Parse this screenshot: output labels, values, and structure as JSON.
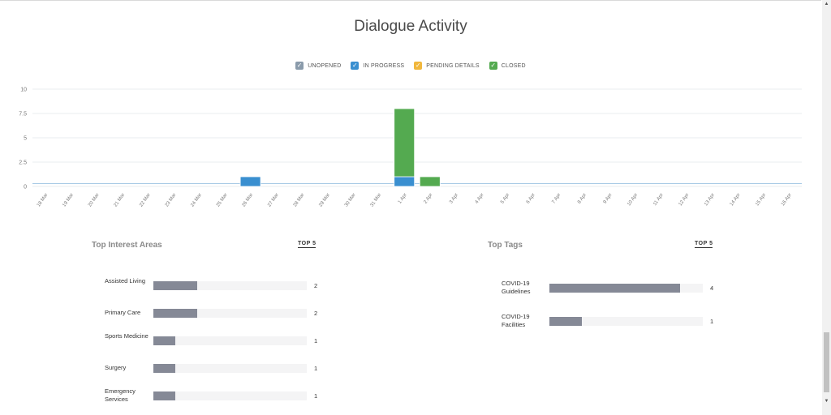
{
  "title": "Dialogue Activity",
  "legend": [
    {
      "label": "UNOPENED",
      "color": "#8a9bab"
    },
    {
      "label": "IN PROGRESS",
      "color": "#3a8fd0"
    },
    {
      "label": "PENDING DETAILS",
      "color": "#f1b73c"
    },
    {
      "label": "CLOSED",
      "color": "#54aa50"
    }
  ],
  "chart_data": {
    "type": "bar",
    "stacked": true,
    "categories": [
      "18 Mar",
      "19 Mar",
      "20 Mar",
      "21 Mar",
      "22 Mar",
      "23 Mar",
      "24 Mar",
      "25 Mar",
      "26 Mar",
      "27 Mar",
      "28 Mar",
      "29 Mar",
      "30 Mar",
      "31 Mar",
      "1 Apr",
      "2 Apr",
      "3 Apr",
      "4 Apr",
      "5 Apr",
      "6 Apr",
      "7 Apr",
      "8 Apr",
      "9 Apr",
      "10 Apr",
      "11 Apr",
      "12 Apr",
      "13 Apr",
      "14 Apr",
      "15 Apr",
      "16 Apr"
    ],
    "series": [
      {
        "name": "UNOPENED",
        "values": [
          0,
          0,
          0,
          0,
          0,
          0,
          0,
          0,
          0,
          0,
          0,
          0,
          0,
          0,
          0,
          0,
          0,
          0,
          0,
          0,
          0,
          0,
          0,
          0,
          0,
          0,
          0,
          0,
          0,
          0
        ]
      },
      {
        "name": "IN PROGRESS",
        "values": [
          0,
          0,
          0,
          0,
          0,
          0,
          0,
          0,
          1,
          0,
          0,
          0,
          0,
          0,
          1,
          0,
          0,
          0,
          0,
          0,
          0,
          0,
          0,
          0,
          0,
          0,
          0,
          0,
          0,
          0
        ]
      },
      {
        "name": "PENDING DETAILS",
        "values": [
          0,
          0,
          0,
          0,
          0,
          0,
          0,
          0,
          0,
          0,
          0,
          0,
          0,
          0,
          0,
          0,
          0,
          0,
          0,
          0,
          0,
          0,
          0,
          0,
          0,
          0,
          0,
          0,
          0,
          0
        ]
      },
      {
        "name": "CLOSED",
        "values": [
          0,
          0,
          0,
          0,
          0,
          0,
          0,
          0,
          0,
          0,
          0,
          0,
          0,
          0,
          7,
          1,
          0,
          0,
          0,
          0,
          0,
          0,
          0,
          0,
          0,
          0,
          0,
          0,
          0,
          0
        ]
      }
    ],
    "yticks": [
      "0",
      "2.5",
      "5",
      "7.5",
      "10"
    ],
    "ylim": [
      0,
      10
    ],
    "grid": true,
    "legend_position": "top-center"
  },
  "interest_areas": {
    "title": "Top Interest Areas",
    "link": "TOP 5",
    "max": 7,
    "items": [
      {
        "label": "Assisted Living",
        "count": 2
      },
      {
        "label": "Primary Care",
        "count": 2
      },
      {
        "label": "Sports Medicine",
        "count": 1
      },
      {
        "label": "Surgery",
        "count": 1
      },
      {
        "label": "Emergency Services",
        "count": 1
      }
    ]
  },
  "tags": {
    "title": "Top Tags",
    "link": "TOP 5",
    "max": 4.7,
    "items": [
      {
        "label": "COVID-19 Guidelines",
        "count": 4
      },
      {
        "label": "COVID-19 Facilities",
        "count": 1
      }
    ]
  }
}
